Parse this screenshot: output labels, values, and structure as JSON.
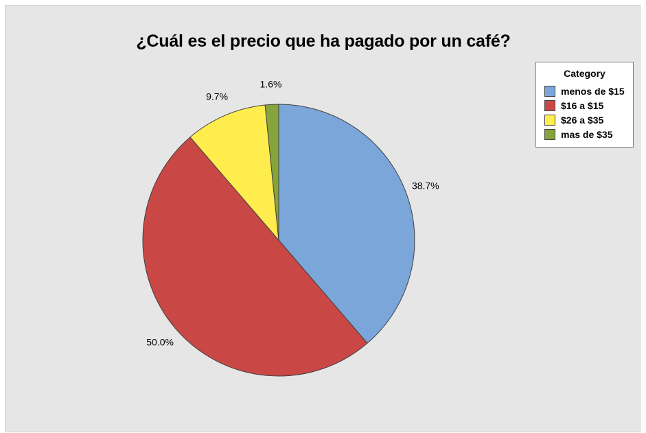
{
  "chart_data": {
    "type": "pie",
    "title": "¿Cuál es el precio que ha pagado por un café?",
    "legend_title": "Category",
    "legend_position": "top-right",
    "slices": [
      {
        "label": "menos de $15",
        "value": 38.7,
        "value_label": "38.7%",
        "color": "#7ba6d9"
      },
      {
        "label": "$16 a $15",
        "value": 50.0,
        "value_label": "50.0%",
        "color": "#c94845"
      },
      {
        "label": "$26 a $35",
        "value": 9.7,
        "value_label": "9.7%",
        "color": "#ffec4d"
      },
      {
        "label": "mas de $35",
        "value": 1.6,
        "value_label": "1.6%",
        "color": "#86a33c"
      }
    ]
  }
}
